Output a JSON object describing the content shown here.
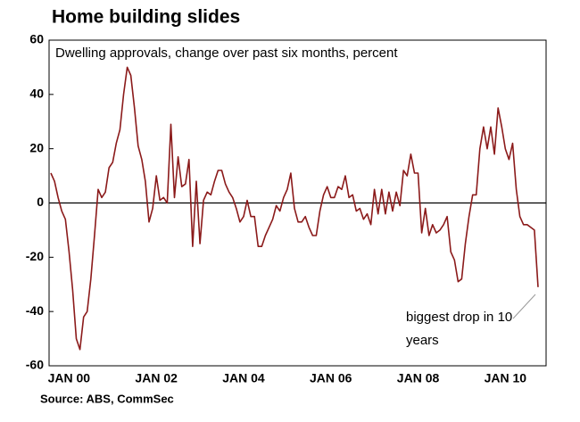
{
  "chart_data": {
    "type": "line",
    "title": "Home building slides",
    "subtitle": "Dwelling approvals, change over past six months, percent",
    "source": "Source: ABS, CommSec",
    "annotation": "biggest drop in 10 years",
    "categories": [
      null,
      null,
      null,
      null,
      null,
      "JAN 00",
      null,
      null,
      null,
      null,
      null,
      null,
      null,
      null,
      null,
      null,
      null,
      null,
      null,
      null,
      null,
      null,
      null,
      null,
      null,
      null,
      null,
      null,
      null,
      "JAN 02",
      null,
      null,
      null,
      null,
      null,
      null,
      null,
      null,
      null,
      null,
      null,
      null,
      null,
      null,
      null,
      null,
      null,
      null,
      null,
      null,
      null,
      null,
      null,
      "JAN 04",
      null,
      null,
      null,
      null,
      null,
      null,
      null,
      null,
      null,
      null,
      null,
      null,
      null,
      null,
      null,
      null,
      null,
      null,
      null,
      null,
      null,
      null,
      null,
      "JAN 06",
      null,
      null,
      null,
      null,
      null,
      null,
      null,
      null,
      null,
      null,
      null,
      null,
      null,
      null,
      null,
      null,
      null,
      null,
      null,
      null,
      null,
      null,
      null,
      "JAN 08",
      null,
      null,
      null,
      null,
      null,
      null,
      null,
      null,
      null,
      null,
      null,
      null,
      null,
      null,
      null,
      null,
      null,
      null,
      null,
      null,
      null,
      null,
      null,
      "JAN 10",
      null,
      null,
      null,
      null,
      null,
      null,
      null,
      null,
      null
    ],
    "series": [
      {
        "name": "Dwelling approvals",
        "color": "#8b1a1a",
        "values": [
          11,
          8,
          2,
          -3,
          -6,
          -18,
          -32,
          -50,
          -54,
          -42,
          -40,
          -28,
          -12,
          5,
          2,
          4,
          13,
          15,
          22,
          27,
          40,
          50,
          47,
          35,
          21,
          16,
          8,
          -7,
          -2,
          10,
          1,
          2,
          0,
          29,
          2,
          17,
          6,
          7,
          16,
          -16,
          8,
          -15,
          1,
          4,
          3,
          8,
          12,
          12,
          7,
          4,
          2,
          -2,
          -7,
          -5,
          1,
          -5,
          -5,
          -16,
          -16,
          -12,
          -9,
          -6,
          -1,
          -3,
          2,
          5,
          11,
          -2,
          -7,
          -7,
          -5,
          -9,
          -12,
          -12,
          -3,
          3,
          6,
          2,
          2,
          6,
          5,
          10,
          2,
          3,
          -3,
          -2,
          -6,
          -4,
          -8,
          5,
          -4,
          5,
          -4,
          4,
          -3,
          4,
          -1,
          12,
          10,
          18,
          11,
          11,
          -11,
          -2,
          -12,
          -8,
          -11,
          -10,
          -8,
          -5,
          -18,
          -21,
          -29,
          -28,
          -15,
          -5,
          3,
          3,
          20,
          28,
          20,
          28,
          18,
          35,
          28,
          20,
          16,
          22,
          5,
          -5,
          -8,
          -8,
          -9,
          -10,
          -31
        ]
      }
    ],
    "ylim": [
      -60,
      60
    ],
    "yticks": [
      -60,
      -40,
      -20,
      0,
      20,
      40,
      60
    ],
    "zero_line": true
  }
}
